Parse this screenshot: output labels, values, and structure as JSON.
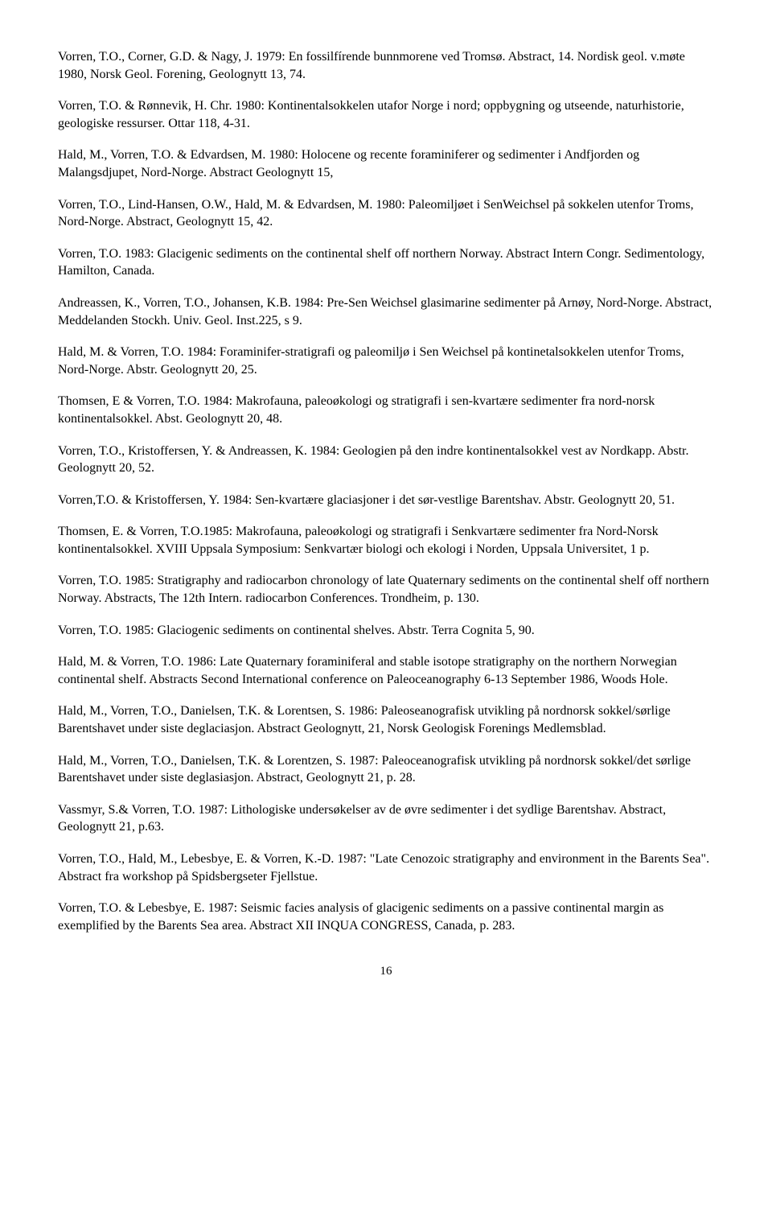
{
  "references": [
    "Vorren, T.O., Corner, G.D. & Nagy, J. 1979: En fossilfírende          bunnmorene ved Tromsø. Abstract, 14. Nordisk geol. v.møte 1980, Norsk Geol. Forening, Geolognytt 13, 74.",
    "Vorren, T.O. & Rønnevik, H. Chr. 1980: Kontinentalsokkelen utafor Norge i nord;   oppbygning og utseende, naturhistorie, geologiske ressurser.  Ottar 118, 4-31.",
    "Hald, M., Vorren, T.O. & Edvardsen, M. 1980: Holocene og recente foraminiferer og sedimenter i Andfjorden og Malangsdjupet, Nord-Norge.  Abstract Geolognytt 15,",
    "Vorren, T.O., Lind-Hansen, O.W., Hald, M. & Edvardsen, M. 1980: Paleomiljøet i SenWeichsel på sokkelen utenfor Troms, Nord-Norge.  Abstract, Geolognytt 15, 42.",
    "Vorren, T.O. 1983:  Glacigenic sediments on the continental shelf off northern Norway. Abstract Intern Congr. Sedimentology, Hamilton, Canada.",
    "Andreassen, K., Vorren, T.O., Johansen, K.B. 1984:  Pre-Sen Weichsel glasimarine sedimenter på Arnøy, Nord-Norge. Abstract,  Meddelanden Stockh. Univ. Geol. Inst.225, s 9.",
    "Hald, M. & Vorren, T.O. 1984:  Foraminifer-stratigrafi og paleomiljø i Sen Weichsel på kontinetalsokkelen utenfor Troms, Nord-Norge. Abstr. Geolognytt 20, 25.",
    "Thomsen, E & Vorren, T.O. 1984:  Makrofauna, paleoøkologi og stratigrafi i sen-kvartære sedimenter fra nord-norsk kontinentalsokkel.  Abst. Geolognytt 20, 48.",
    "Vorren, T.O., Kristoffersen, Y. & Andreassen, K. 1984:  Geologien på den indre kontinentalsokkel vest av Nordkapp.  Abstr. Geolognytt 20, 52.",
    "Vorren,T.O. & Kristoffersen, Y. 1984: Sen-kvartære glaciasjoner i det                   sør-vestlige Barentshav. Abstr. Geolognytt 20, 51.",
    "Thomsen, E. & Vorren, T.O.1985:  Makrofauna, paleoøkologi og stratigrafi i Senkvartære sedimenter fra Nord-Norsk kontinentalsokkel.  XVIII Uppsala Symposium:  Senkvartær biologi och ekologi i Norden, Uppsala Universitet, 1 p.",
    "Vorren, T.O. 1985:  Stratigraphy and radiocarbon chronology of late Quaternary sediments on the continental shelf off northern Norway.  Abstracts, The 12th Intern. radiocarbon Conferences.  Trondheim, p. 130.",
    "Vorren, T.O. 1985:  Glaciogenic sediments on continental shelves. Abstr. Terra Cognita 5, 90.",
    "Hald, M. & Vorren, T.O. 1986:  Late Quaternary foraminiferal and stable isotope stratigraphy on the northern Norwegian continental shelf.  Abstracts Second International conference on Paleoceanography 6-13 September 1986, Woods Hole.",
    "Hald, M., Vorren, T.O., Danielsen, T.K. & Lorentsen, S. 1986: Paleoseanografisk utvikling på nordnorsk sokkel/sørlige Barentshavet under siste deglaciasjon.  Abstract Geolognytt, 21, Norsk Geologisk Forenings Medlemsblad.",
    "Hald, M., Vorren, T.O., Danielsen, T.K. & Lorentzen, S. 1987: Paleoceanografisk utvikling på nordnorsk sokkel/det sørlige Barentshavet under siste deglasiasjon.  Abstract, Geolognytt 21, p. 28.",
    "Vassmyr, S.& Vorren, T.O. 1987: Lithologiske undersøkelser av de øvre sedimenter i det sydlige Barentshav.  Abstract, Geolognytt 21, p.63.",
    "Vorren, T.O., Hald, M., Lebesbye, E. & Vorren, K.-D. 1987: \"Late Cenozoic stratigraphy and environment in the Barents Sea\". Abstract fra workshop på Spidsbergseter Fjellstue.",
    "Vorren, T.O. & Lebesbye, E. 1987:  Seismic facies analysis of                    glacigenic sediments on a passive continental margin as exemplified by the Barents Sea area.  Abstract XII INQUA CONGRESS, Canada, p. 283."
  ],
  "pageNumber": "16"
}
